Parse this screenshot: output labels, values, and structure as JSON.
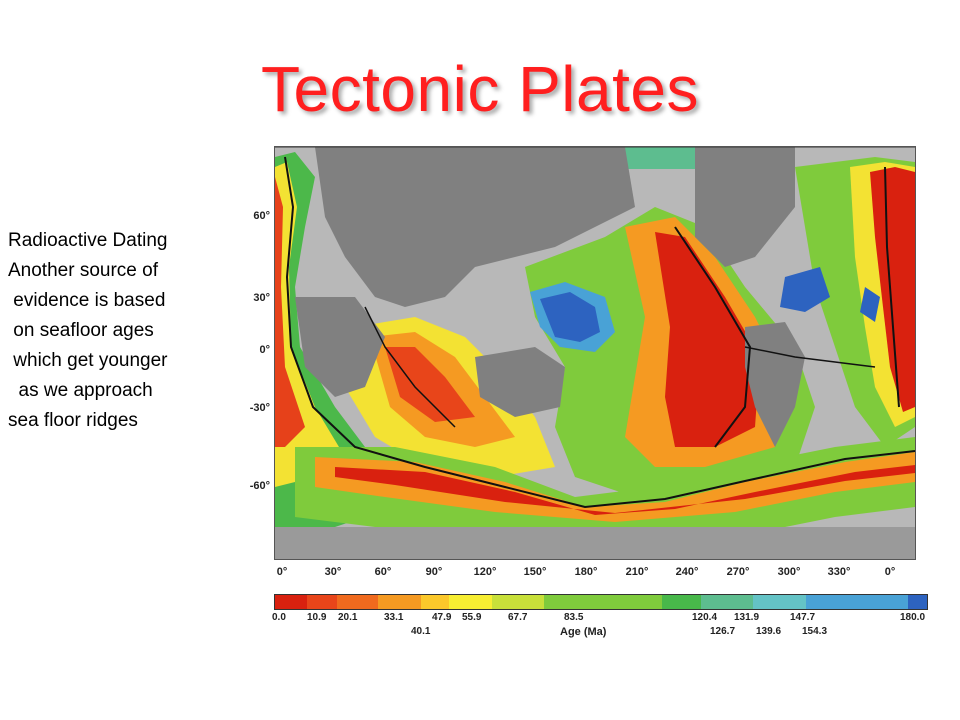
{
  "title": "Tectonic Plates",
  "body_lines": [
    "Radioactive Dating",
    "",
    "Another source of",
    " evidence is based",
    " on seafloor ages",
    " which get younger",
    "  as we approach",
    "sea floor ridges"
  ],
  "map": {
    "lat_labels": [
      "60°",
      "30°",
      "0°",
      "-30°",
      "-60°"
    ],
    "lon_labels": [
      "0°",
      "30°",
      "60°",
      "90°",
      "120°",
      "150°",
      "180°",
      "210°",
      "240°",
      "270°",
      "300°",
      "330°",
      "0°"
    ]
  },
  "legend": {
    "title": "Age (Ma)",
    "top_values": [
      "0.0",
      "10.9",
      "20.1",
      "33.1",
      "47.9",
      "55.9",
      "67.7",
      "83.5",
      "120.4",
      "131.9",
      "147.7",
      "180.0"
    ],
    "bottom_values": [
      "40.1",
      "126.7",
      "139.6",
      "154.3"
    ],
    "colors": [
      "#d9210f",
      "#e8451a",
      "#f06a1e",
      "#f59a22",
      "#fbc82b",
      "#f7ee32",
      "#c8e03a",
      "#7fcb3c",
      "#48b84a",
      "#5dbd8f",
      "#64c3c6",
      "#49a2d6",
      "#2d63c0"
    ]
  }
}
